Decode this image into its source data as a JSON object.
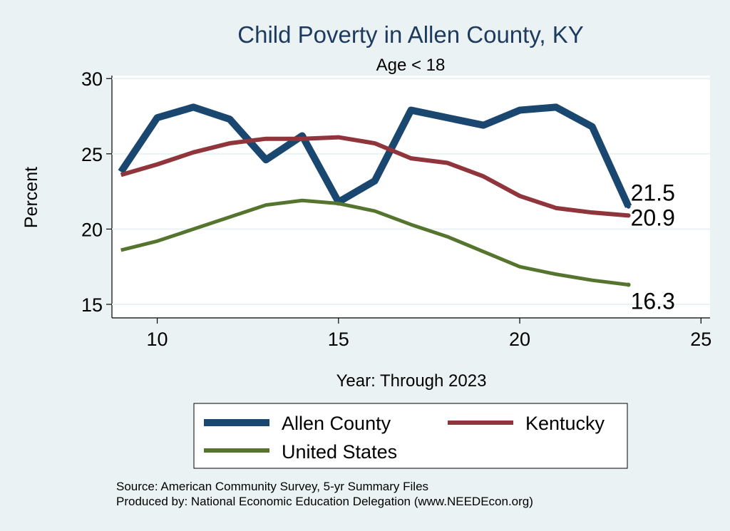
{
  "chart_data": {
    "type": "line",
    "title": "Child Poverty in Allen County, KY",
    "subtitle": "Age < 18",
    "xlabel": "Year: Through 2023",
    "ylabel": "Percent",
    "xlim": [
      8.75,
      25.25
    ],
    "ylim": [
      14.1,
      30.2
    ],
    "xticks": [
      10,
      15,
      20,
      25
    ],
    "yticks": [
      15,
      20,
      25,
      30
    ],
    "grid": true,
    "legend_position": "bottom",
    "x": [
      9,
      10,
      11,
      12,
      13,
      14,
      15,
      16,
      17,
      18,
      19,
      20,
      21,
      22,
      23
    ],
    "series": [
      {
        "name": "Allen County",
        "color": "#1a476f",
        "values": [
          23.8,
          27.4,
          28.1,
          27.3,
          24.6,
          26.2,
          21.8,
          23.2,
          27.9,
          27.4,
          26.9,
          27.9,
          28.1,
          26.8,
          21.5
        ],
        "end_label": "21.5"
      },
      {
        "name": "Kentucky",
        "color": "#90353b",
        "values": [
          23.6,
          24.3,
          25.1,
          25.7,
          26.0,
          26.0,
          26.1,
          25.7,
          24.7,
          24.4,
          23.5,
          22.2,
          21.4,
          21.1,
          20.9
        ],
        "end_label": "20.9"
      },
      {
        "name": "United States",
        "color": "#55752f",
        "values": [
          18.6,
          19.2,
          20.0,
          20.8,
          21.6,
          21.9,
          21.7,
          21.2,
          20.3,
          19.5,
          18.5,
          17.5,
          17.0,
          16.6,
          16.3
        ],
        "end_label": "16.3"
      }
    ],
    "notes": [
      "Source: American Community Survey, 5-yr Summary Files",
      "Produced by: National Economic Education Delegation (www.NEEDEcon.org)"
    ]
  }
}
